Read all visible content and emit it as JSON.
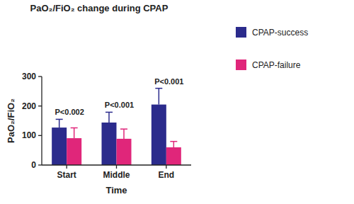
{
  "chart_data": {
    "type": "bar",
    "title": "PaO₂/FiO₂ change during CPAP",
    "x_label": "Time",
    "y_label": "PaO₂/FiO₂",
    "categories": [
      "Start",
      "Middle",
      "End"
    ],
    "series": [
      {
        "name": "CPAP-success",
        "color": "#2b2b8c",
        "values": [
          127,
          144,
          205
        ],
        "errors": [
          28,
          35,
          55
        ]
      },
      {
        "name": "CPAP-failure",
        "color": "#e0267a",
        "values": [
          91,
          89,
          60
        ],
        "errors": [
          35,
          33,
          20
        ]
      }
    ],
    "annotations": [
      "P<0.002",
      "P<0.001",
      "P<0.001"
    ],
    "ylim": [
      0,
      300
    ],
    "yticks": [
      0,
      100,
      200,
      300
    ],
    "grid": false,
    "legend": "right"
  }
}
